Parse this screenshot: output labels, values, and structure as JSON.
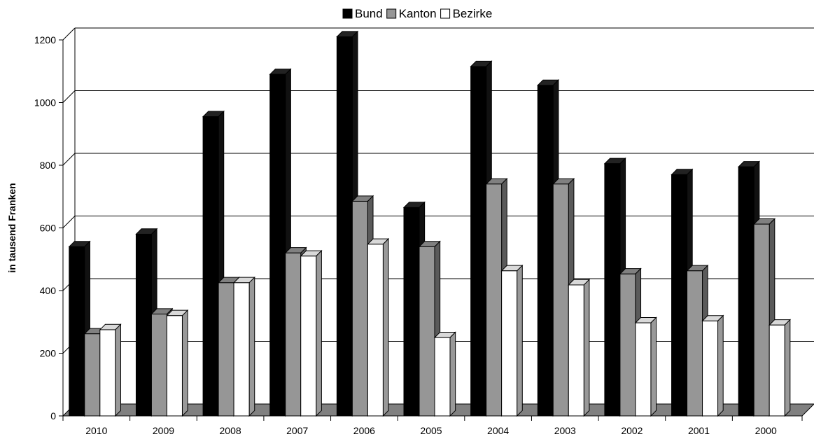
{
  "chart_data": {
    "type": "bar",
    "title": "",
    "xlabel": "",
    "ylabel": "in tausend Franken",
    "ylim": [
      0,
      1200
    ],
    "yticks": [
      0,
      200,
      400,
      600,
      800,
      1000,
      1200
    ],
    "categories": [
      "2010",
      "2009",
      "2008",
      "2007",
      "2006",
      "2005",
      "2004",
      "2003",
      "2002",
      "2001",
      "2000"
    ],
    "series": [
      {
        "name": "Bund",
        "color": "#000000",
        "values": [
          540,
          580,
          955,
          1090,
          1210,
          665,
          1115,
          1055,
          805,
          770,
          795
        ]
      },
      {
        "name": "Kanton",
        "color": "#969696",
        "values": [
          262,
          325,
          425,
          520,
          685,
          540,
          740,
          740,
          453,
          463,
          612
        ]
      },
      {
        "name": "Bezirke",
        "color": "#ffffff",
        "values": [
          275,
          320,
          425,
          510,
          548,
          250,
          463,
          418,
          297,
          303,
          290
        ]
      }
    ],
    "grid": true,
    "legend": "top",
    "style": "3d-clustered-bar"
  }
}
